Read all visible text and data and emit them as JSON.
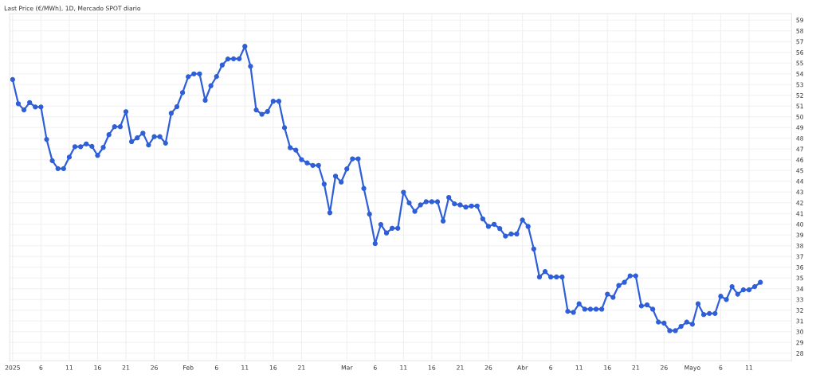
{
  "chart_data": {
    "type": "line",
    "title": "Last Price (€/MWh), 1D, Mercado SPOT diario",
    "x": [
      "2025-01-01",
      "2025-01-02",
      "2025-01-03",
      "2025-01-04",
      "2025-01-05",
      "2025-01-06",
      "2025-01-07",
      "2025-01-08",
      "2025-01-09",
      "2025-01-10",
      "2025-01-11",
      "2025-01-12",
      "2025-01-13",
      "2025-01-14",
      "2025-01-15",
      "2025-01-16",
      "2025-01-17",
      "2025-01-18",
      "2025-01-19",
      "2025-01-20",
      "2025-01-21",
      "2025-01-22",
      "2025-01-23",
      "2025-01-24",
      "2025-01-25",
      "2025-01-26",
      "2025-01-27",
      "2025-01-28",
      "2025-01-29",
      "2025-01-30",
      "2025-01-31",
      "2025-02-01",
      "2025-02-02",
      "2025-02-03",
      "2025-02-04",
      "2025-02-05",
      "2025-02-06",
      "2025-02-07",
      "2025-02-08",
      "2025-02-09",
      "2025-02-10",
      "2025-02-11",
      "2025-02-12",
      "2025-02-13",
      "2025-02-14",
      "2025-02-15",
      "2025-02-16",
      "2025-02-17",
      "2025-02-18",
      "2025-02-19",
      "2025-02-20",
      "2025-02-21",
      "2025-02-22",
      "2025-02-23",
      "2025-02-24",
      "2025-02-25",
      "2025-02-26",
      "2025-02-27",
      "2025-02-28",
      "2025-03-01",
      "2025-03-02",
      "2025-03-03",
      "2025-03-04",
      "2025-03-05",
      "2025-03-06",
      "2025-03-07",
      "2025-03-08",
      "2025-03-09",
      "2025-03-10",
      "2025-03-11",
      "2025-03-12",
      "2025-03-13",
      "2025-03-14",
      "2025-03-15",
      "2025-03-16",
      "2025-03-17",
      "2025-03-18",
      "2025-03-19",
      "2025-03-20",
      "2025-03-21",
      "2025-03-22",
      "2025-03-23",
      "2025-03-24",
      "2025-03-25",
      "2025-03-26",
      "2025-03-27",
      "2025-03-28",
      "2025-03-29",
      "2025-03-30",
      "2025-03-31",
      "2025-04-01",
      "2025-04-02",
      "2025-04-03",
      "2025-04-04",
      "2025-04-05",
      "2025-04-06",
      "2025-04-07",
      "2025-04-08",
      "2025-04-09",
      "2025-04-10",
      "2025-04-11",
      "2025-04-12",
      "2025-04-13",
      "2025-04-14",
      "2025-04-15",
      "2025-04-16",
      "2025-04-17",
      "2025-04-18",
      "2025-04-19",
      "2025-04-20",
      "2025-04-21",
      "2025-04-22",
      "2025-04-23",
      "2025-04-24",
      "2025-04-25",
      "2025-04-26",
      "2025-04-27",
      "2025-04-28",
      "2025-04-29",
      "2025-04-30",
      "2025-05-01",
      "2025-05-02",
      "2025-05-03",
      "2025-05-04",
      "2025-05-05",
      "2025-05-06",
      "2025-05-07",
      "2025-05-08",
      "2025-05-09",
      "2025-05-10",
      "2025-05-11",
      "2025-05-12",
      "2025-05-13"
    ],
    "series": [
      {
        "color": "#2f5fd8",
        "values": [
          53.47,
          51.22,
          50.64,
          51.33,
          50.92,
          50.92,
          47.9,
          45.92,
          45.18,
          45.18,
          46.25,
          47.22,
          47.22,
          47.48,
          47.25,
          46.41,
          47.15,
          48.34,
          49.08,
          49.08,
          50.48,
          47.69,
          48.04,
          48.48,
          47.38,
          48.15,
          48.15,
          47.55,
          50.34,
          50.94,
          52.26,
          53.73,
          54.0,
          54.0,
          51.54,
          52.89,
          53.75,
          54.82,
          55.38,
          55.4,
          55.4,
          56.56,
          54.7,
          50.64,
          50.24,
          50.5,
          51.45,
          51.45,
          48.99,
          47.13,
          46.9,
          46.02,
          45.71,
          45.48,
          45.48,
          43.74,
          41.07,
          44.48,
          43.93,
          45.15,
          46.09,
          46.09,
          43.34,
          40.95,
          38.21,
          39.98,
          39.19,
          39.63,
          39.63,
          42.98,
          41.99,
          41.2,
          41.8,
          42.1,
          42.1,
          42.1,
          40.3,
          42.5,
          41.9,
          41.8,
          41.6,
          41.7,
          41.7,
          40.5,
          39.8,
          40.0,
          39.6,
          38.9,
          39.1,
          39.1,
          40.4,
          39.8,
          37.7,
          35.1,
          35.6,
          35.1,
          35.1,
          35.1,
          31.9,
          31.8,
          32.6,
          32.1,
          32.1,
          32.1,
          32.1,
          33.5,
          33.2,
          34.3,
          34.6,
          35.2,
          35.2,
          32.4,
          32.5,
          32.1,
          30.9,
          30.8,
          30.1,
          30.1,
          30.5,
          30.9,
          30.7,
          32.6,
          31.6,
          31.7,
          31.7,
          33.3,
          33.0,
          34.2,
          33.5,
          33.9,
          33.9,
          34.2,
          34.6
        ]
      }
    ],
    "xlim": [
      "2024-12-31T12:00",
      "2025-05-18T12:00"
    ],
    "xticks": [
      {
        "value": "2025-01-01",
        "label": "2025"
      },
      {
        "value": "2025-01-06",
        "label": "6"
      },
      {
        "value": "2025-01-11",
        "label": "11"
      },
      {
        "value": "2025-01-16",
        "label": "16"
      },
      {
        "value": "2025-01-21",
        "label": "21"
      },
      {
        "value": "2025-01-26",
        "label": "26"
      },
      {
        "value": "2025-02-01",
        "label": "Feb"
      },
      {
        "value": "2025-02-06",
        "label": "6"
      },
      {
        "value": "2025-02-11",
        "label": "11"
      },
      {
        "value": "2025-02-16",
        "label": "16"
      },
      {
        "value": "2025-02-21",
        "label": "21"
      },
      {
        "value": "2025-03-01",
        "label": "Mar"
      },
      {
        "value": "2025-03-06",
        "label": "6"
      },
      {
        "value": "2025-03-11",
        "label": "11"
      },
      {
        "value": "2025-03-16",
        "label": "16"
      },
      {
        "value": "2025-03-21",
        "label": "21"
      },
      {
        "value": "2025-03-26",
        "label": "26"
      },
      {
        "value": "2025-04-01",
        "label": "Abr"
      },
      {
        "value": "2025-04-06",
        "label": "6"
      },
      {
        "value": "2025-04-11",
        "label": "11"
      },
      {
        "value": "2025-04-16",
        "label": "16"
      },
      {
        "value": "2025-04-21",
        "label": "21"
      },
      {
        "value": "2025-04-26",
        "label": "26"
      },
      {
        "value": "2025-05-01",
        "label": "Mayo"
      },
      {
        "value": "2025-05-06",
        "label": "6"
      },
      {
        "value": "2025-05-11",
        "label": "11"
      }
    ],
    "ylim": [
      27.3,
      59.6
    ],
    "yticks": [
      28,
      29,
      30,
      31,
      32,
      33,
      34,
      35,
      36,
      37,
      38,
      39,
      40,
      41,
      42,
      43,
      44,
      45,
      46,
      47,
      48,
      49,
      50,
      51,
      52,
      53,
      54,
      55,
      56,
      57,
      58,
      59
    ],
    "grid": true,
    "marker": "circle",
    "line_style": "solid",
    "legend": false
  }
}
